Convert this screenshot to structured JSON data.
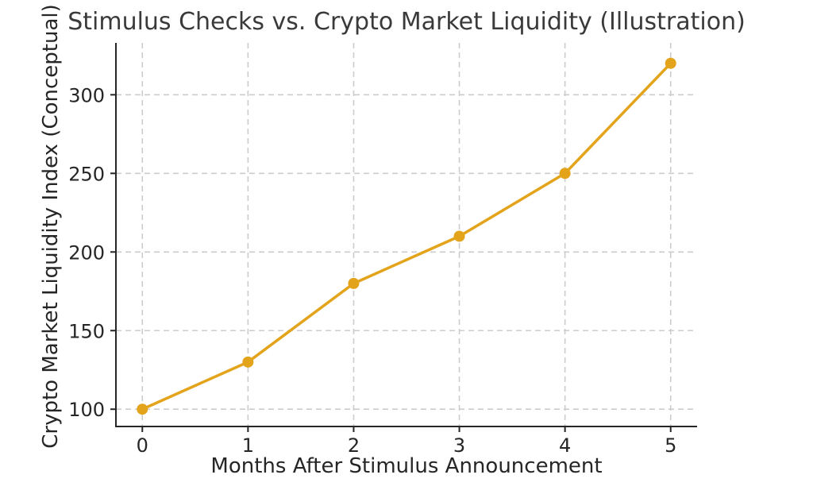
{
  "chart_data": {
    "type": "line",
    "title": "Stimulus Checks vs. Crypto Market Liquidity (Illustration)",
    "xlabel": "Months After Stimulus Announcement",
    "ylabel": "Crypto Market Liquidity Index (Conceptual)",
    "x": [
      0,
      1,
      2,
      3,
      4,
      5
    ],
    "y": [
      100,
      130,
      180,
      210,
      250,
      320
    ],
    "xticks": [
      0,
      1,
      2,
      3,
      4,
      5
    ],
    "yticks": [
      100,
      150,
      200,
      250,
      300
    ],
    "xlim": [
      -0.25,
      5.25
    ],
    "ylim": [
      89,
      333
    ],
    "grid": true,
    "grid_style": "dashed",
    "legend": "none",
    "colors": {
      "line": "#E3A41C",
      "marker": "#E3A41C",
      "grid": "#cccccc",
      "axis": "#262626",
      "tick_text": "#262626",
      "title_text": "#3a3a3a",
      "background": "#ffffff"
    }
  }
}
